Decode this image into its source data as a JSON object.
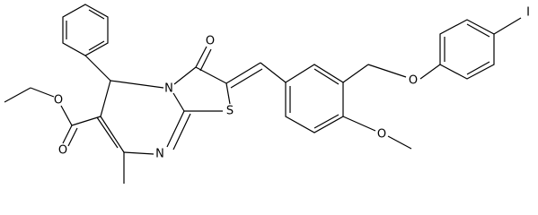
{
  "atoms": {
    "o_keto": "O",
    "n_bridge": "N",
    "s_ring": "S",
    "n_ring": "N",
    "o_ester_single": "O",
    "o_ester_double": "O",
    "o_methoxy": "O",
    "o_ether": "O",
    "iodine": "I"
  }
}
